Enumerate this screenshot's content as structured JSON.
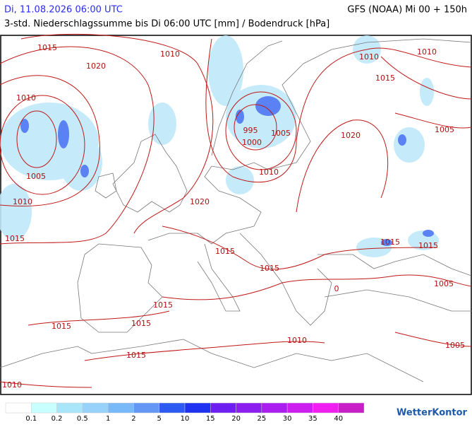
{
  "header": {
    "datetime": "Di, 11.08.2026 06:00 UTC",
    "model": "GFS (NOAA) Mi 00 + 150h",
    "subtitle": "3-std. Niederschlagssumme bis Di 06:00 UTC [mm] / Bodendruck [hPa]"
  },
  "isobar_labels": [
    "1015",
    "1010",
    "1020",
    "1010",
    "1005",
    "1010",
    "1015",
    "1010",
    "1010",
    "1015",
    "995",
    "1000",
    "1005",
    "1010",
    "1020",
    "1005",
    "1020",
    "1015",
    "1015",
    "1015",
    "1015",
    "1005",
    "0",
    "1015",
    "1015",
    "1015",
    "1015",
    "1010",
    "1005",
    "1010"
  ],
  "legend": {
    "labels": [
      0.1,
      0.2,
      0.5,
      1,
      2,
      5,
      10,
      15,
      20,
      25,
      30,
      35,
      40
    ],
    "colors": [
      "#ffffff",
      "#c8ffff",
      "#aae6fa",
      "#96d2fa",
      "#78b9fa",
      "#6496f5",
      "#2d5af0",
      "#1e32f0",
      "#6e1ef0",
      "#8c1ef0",
      "#aa1ef0",
      "#cd1ef0",
      "#f01ef0",
      "#c81ec8"
    ]
  },
  "logo": "WetterKontor"
}
